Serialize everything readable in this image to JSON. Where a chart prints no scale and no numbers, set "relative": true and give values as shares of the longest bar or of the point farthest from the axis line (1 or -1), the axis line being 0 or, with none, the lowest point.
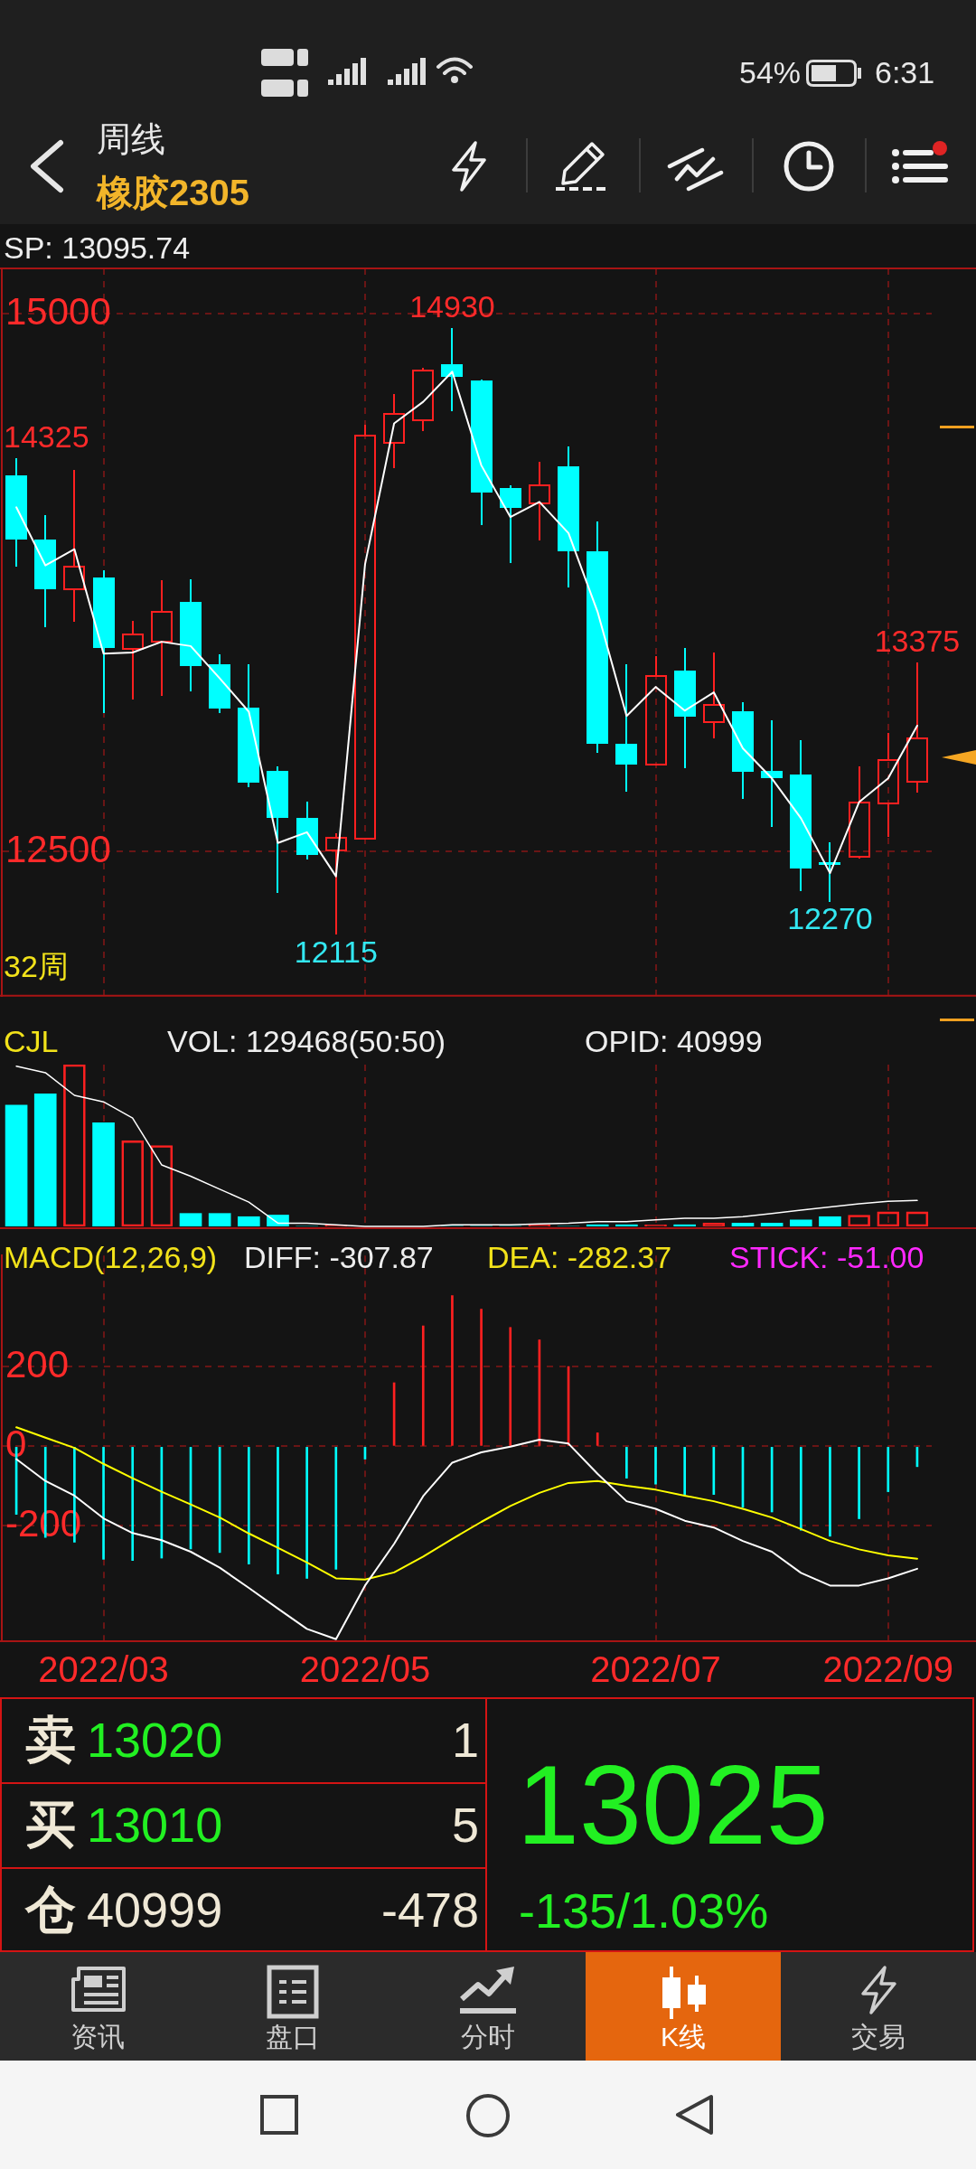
{
  "chart_data": [
    {
      "type": "other",
      "annotations": [
        "54%",
        "6:31"
      ]
    },
    {
      "type": "candlestick",
      "title": "周线",
      "subtitle": "橡胶2305",
      "categories": [
        null,
        null,
        null,
        "2022/03",
        null,
        null,
        null,
        null,
        null,
        null,
        null,
        null,
        "2022/05",
        null,
        null,
        null,
        null,
        null,
        null,
        null,
        null,
        null,
        "2022/07",
        null,
        null,
        null,
        null,
        null,
        null,
        null,
        "2022/09",
        null
      ],
      "ohlc": [
        [
          14250,
          14325,
          13825,
          13950
        ],
        [
          13950,
          14060,
          13545,
          13720
        ],
        [
          13720,
          14270,
          13570,
          13825
        ],
        [
          13775,
          13805,
          13145,
          13445
        ],
        [
          13440,
          13570,
          13210,
          13510
        ],
        [
          13475,
          13760,
          13225,
          13615
        ],
        [
          13660,
          13765,
          13245,
          13360
        ],
        [
          13370,
          13415,
          13145,
          13165
        ],
        [
          13170,
          13370,
          12800,
          12820
        ],
        [
          12875,
          12895,
          12310,
          12655
        ],
        [
          12655,
          12730,
          12465,
          12485
        ],
        [
          12505,
          12585,
          12115,
          12565
        ],
        [
          12560,
          14480,
          12560,
          14435
        ],
        [
          14400,
          14625,
          14285,
          14535
        ],
        [
          14505,
          14745,
          14455,
          14735
        ],
        [
          14765,
          14930,
          14550,
          14705
        ],
        [
          14690,
          14690,
          14020,
          14170
        ],
        [
          14190,
          14200,
          13845,
          14095
        ],
        [
          14120,
          14310,
          13950,
          14200
        ],
        [
          14290,
          14380,
          13730,
          13895
        ],
        [
          13895,
          14030,
          12960,
          13000
        ],
        [
          13000,
          13370,
          12780,
          12905
        ],
        [
          12905,
          13405,
          12905,
          13315
        ],
        [
          13340,
          13445,
          12890,
          13125
        ],
        [
          13100,
          13425,
          13030,
          13180
        ],
        [
          13150,
          13190,
          12745,
          12870
        ],
        [
          12875,
          13110,
          12615,
          12840
        ],
        [
          12860,
          13015,
          12320,
          12420
        ],
        [
          12450,
          12540,
          12270,
          12440
        ],
        [
          12475,
          12895,
          12470,
          12730
        ],
        [
          12725,
          13050,
          12570,
          12925
        ],
        [
          12825,
          13375,
          12775,
          13025
        ]
      ],
      "colors": [
        "#00ffff",
        "#00ffff",
        "#ff2020",
        "#00ffff",
        "#ff2020",
        "#ff2020",
        "#00ffff",
        "#00ffff",
        "#00ffff",
        "#00ffff",
        "#00ffff",
        "#ff2020",
        "#ff2020",
        "#ff2020",
        "#ff2020",
        "#00ffff",
        "#00ffff",
        "#00ffff",
        "#ff2020",
        "#00ffff",
        "#00ffff",
        "#00ffff",
        "#ff2020",
        "#00ffff",
        "#ff2020",
        "#00ffff",
        "#00ffff",
        "#00ffff",
        "#00ffff",
        "#ff2020",
        "#ff2020",
        "#ff2020"
      ],
      "series": [
        {
          "type": "line",
          "color": "#ffffff",
          "values": [
            14100,
            13830,
            13905,
            13420,
            13425,
            13475,
            13455,
            13305,
            13150,
            12540,
            12590,
            12385,
            13835,
            14490,
            14590,
            14730,
            14295,
            14055,
            14125,
            13980,
            13615,
            13130,
            13265,
            13155,
            13240,
            12980,
            12840,
            12655,
            12400,
            12730,
            12840,
            13085
          ]
        }
      ],
      "ylim": [
        11830,
        15210
      ],
      "yticks": [
        12500,
        15000
      ],
      "grid": true,
      "tick_labels": "y",
      "annotations": [
        "SP: 13095.74",
        "14930",
        "14325",
        "13375",
        "12115",
        "12270",
        "32周"
      ]
    },
    {
      "type": "bar",
      "title": "CJL",
      "relative": true,
      "tick_labels": false,
      "grid": "x",
      "categories": [
        null,
        null,
        null,
        "2022/03",
        null,
        null,
        null,
        null,
        null,
        null,
        null,
        null,
        "2022/05",
        null,
        null,
        null,
        null,
        null,
        null,
        null,
        null,
        null,
        "2022/07",
        null,
        null,
        null,
        null,
        null,
        null,
        null,
        "2022/09",
        null
      ],
      "series": [
        {
          "type": "bar",
          "colors": [
            "#00ffff",
            "#00ffff",
            "#ff2020",
            "#00ffff",
            "#ff2020",
            "#ff2020",
            "#00ffff",
            "#00ffff",
            "#00ffff",
            "#00ffff",
            "#00ffff",
            "#ff2020",
            "#ff2020",
            "#ff2020",
            "#ff2020",
            "#00ffff",
            "#00ffff",
            "#00ffff",
            "#ff2020",
            "#00ffff",
            "#00ffff",
            "#00ffff",
            "#ff2020",
            "#00ffff",
            "#ff2020",
            "#00ffff",
            "#00ffff",
            "#00ffff",
            "#00ffff",
            "#ff2020",
            "#ff2020",
            "#ff2020"
          ],
          "values": [
            0.75,
            0.82,
            1,
            0.64,
            0.53,
            0.5,
            0.08,
            0.08,
            0.06,
            0.07,
            0,
            0.01,
            0,
            0,
            0,
            0,
            0,
            0,
            0.01,
            0,
            0.01,
            0.01,
            0.01,
            0.01,
            0.02,
            0.02,
            0.02,
            0.04,
            0.06,
            0.07,
            0.09,
            0.09
          ]
        },
        {
          "type": "line",
          "color": "#ffffff",
          "values": [
            0.99,
            0.95,
            0.81,
            0.77,
            0.67,
            0.38,
            0.31,
            0.23,
            0.15,
            0.02,
            0.02,
            0.01,
            0,
            0,
            0,
            0.01,
            0.01,
            0.01,
            0.015,
            0.02,
            0.03,
            0.03,
            0.04,
            0.05,
            0.05,
            0.06,
            0.08,
            0.1,
            0.12,
            0.14,
            0.155,
            0.16
          ]
        }
      ],
      "annotations": [
        "VOL: 129468(50:50)",
        "OPID: 40999"
      ]
    },
    {
      "type": "bar",
      "title": "MACD(12,26,9)",
      "grid": true,
      "categories": [
        null,
        null,
        null,
        "2022/03",
        null,
        null,
        null,
        null,
        null,
        null,
        null,
        null,
        "2022/05",
        null,
        null,
        null,
        null,
        null,
        null,
        null,
        null,
        null,
        "2022/07",
        null,
        null,
        null,
        null,
        null,
        null,
        null,
        "2022/09",
        null
      ],
      "series": [
        {
          "type": "bar",
          "colors": [
            "#00ffff",
            "#00ffff",
            "#00ffff",
            "#00ffff",
            "#00ffff",
            "#00ffff",
            "#00ffff",
            "#00ffff",
            "#00ffff",
            "#00ffff",
            "#00ffff",
            "#00ffff",
            "#00ffff",
            "#ff2020",
            "#ff2020",
            "#ff2020",
            "#ff2020",
            "#ff2020",
            "#ff2020",
            "#ff2020",
            "#ff2020",
            "#00ffff",
            "#00ffff",
            "#00ffff",
            "#00ffff",
            "#00ffff",
            "#00ffff",
            "#00ffff",
            "#00ffff",
            "#00ffff",
            "#00ffff",
            "#00ffff"
          ],
          "values": [
            -171,
            -229,
            -241,
            -284,
            -287,
            -281,
            -258,
            -267,
            -296,
            -321,
            -332,
            -309,
            -32,
            160,
            303,
            379,
            345,
            299,
            268,
            201,
            34,
            -80,
            -95,
            -121,
            -121,
            -153,
            -165,
            -211,
            -226,
            -182,
            -114,
            -51
          ]
        },
        {
          "type": "line",
          "color": "#ffffff",
          "values": [
            -32,
            -87,
            -124,
            -181,
            -218,
            -236,
            -265,
            -305,
            -356,
            -408,
            -459,
            -485,
            -350,
            -245,
            -125,
            -41,
            -15,
            -1,
            17,
            7,
            -69,
            -138,
            -157,
            -187,
            -204,
            -238,
            -265,
            -318,
            -350,
            -350,
            -332,
            -307.87
          ]
        },
        {
          "type": "line",
          "color": "#ffff00",
          "values": [
            48,
            22,
            -4,
            -44,
            -80,
            -114,
            -146,
            -179,
            -219,
            -255,
            -292,
            -332,
            -335,
            -317,
            -277,
            -233,
            -190,
            -150,
            -117,
            -92,
            -87,
            -99,
            -109,
            -124,
            -138,
            -157,
            -179,
            -208,
            -238,
            -259,
            -274,
            -282.37
          ]
        }
      ],
      "ylim": [
        -490,
        480
      ],
      "yticks": [
        -200,
        0,
        200
      ],
      "annotations": [
        "DIFF: -307.87",
        "DEA: -282.37",
        "STICK: -51.00"
      ]
    },
    {
      "type": "other",
      "annotations": [
        "卖",
        "13020",
        "1",
        "买",
        "13010",
        "5",
        "仓",
        "40999",
        "-478",
        "13025",
        "-135/1.03%",
        "资讯",
        "盘口",
        "分时",
        "K线",
        "交易"
      ]
    }
  ]
}
